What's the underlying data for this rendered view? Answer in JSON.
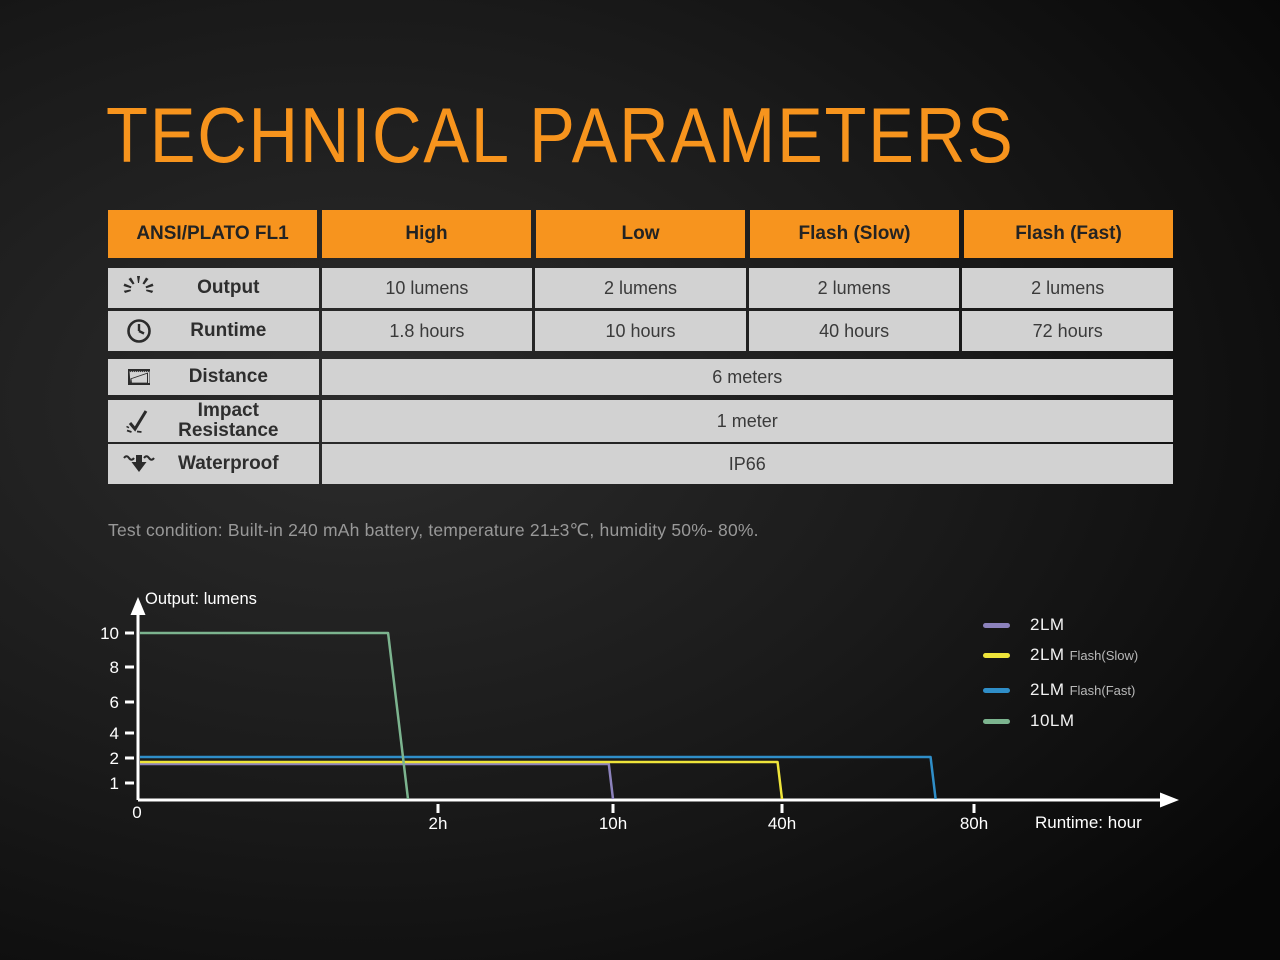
{
  "title": "TECHNICAL PARAMETERS",
  "test_condition": "Test condition: Built-in 240 mAh battery, temperature 21±3℃, humidity 50%- 80%.",
  "table": {
    "headers": [
      "ANSI/PLATO FL1",
      "High",
      "Low",
      "Flash (Slow)",
      "Flash (Fast)"
    ],
    "rows": [
      {
        "icon": "brightness-icon",
        "label": "Output",
        "values": [
          "10 lumens",
          "2 lumens",
          "2 lumens",
          "2 lumens"
        ]
      },
      {
        "icon": "clock-icon",
        "label": "Runtime",
        "values": [
          "1.8 hours",
          "10 hours",
          "40 hours",
          "72 hours"
        ]
      },
      {
        "icon": "beam-distance-icon",
        "label": "Distance",
        "span_value": "6 meters"
      },
      {
        "icon": "impact-icon",
        "label": "Impact Resistance",
        "span_value": "1 meter"
      },
      {
        "icon": "waterproof-icon",
        "label": "Waterproof",
        "span_value": "IP66"
      }
    ]
  },
  "chart_data": {
    "type": "line",
    "title": "Output: lumens",
    "xlabel": "Runtime: hour",
    "ylabel": "Output: lumens",
    "x_axis_unit": "hours",
    "y_axis_unit": "lumens",
    "y_ticks": [
      10,
      8,
      6,
      4,
      2,
      1,
      0
    ],
    "x_ticks": [
      {
        "hours": 0,
        "label": "0"
      },
      {
        "hours": 2,
        "label": "2h"
      },
      {
        "hours": 10,
        "label": "10h"
      },
      {
        "hours": 40,
        "label": "40h"
      },
      {
        "hours": 80,
        "label": "80h"
      }
    ],
    "grid": false,
    "legend_position": "right",
    "axis_color": "#ffffff",
    "series": [
      {
        "name": "2LM",
        "suffix": "",
        "color": "#8c82bc",
        "lumens": 2,
        "runtime_hours": 10,
        "points": [
          [
            0,
            2
          ],
          [
            10,
            2
          ],
          [
            10,
            0
          ]
        ]
      },
      {
        "name": "2LM",
        "suffix": "Flash(Slow)",
        "color": "#eee43a",
        "lumens": 2,
        "runtime_hours": 40,
        "points": [
          [
            0,
            2
          ],
          [
            40,
            2
          ],
          [
            40,
            0
          ]
        ]
      },
      {
        "name": "2LM",
        "suffix": "Flash(Fast)",
        "color": "#2f8ec8",
        "lumens": 2,
        "runtime_hours": 72,
        "points": [
          [
            0,
            2
          ],
          [
            72,
            2
          ],
          [
            72,
            0
          ]
        ]
      },
      {
        "name": "10LM",
        "suffix": "",
        "color": "#7cb48f",
        "lumens": 10,
        "runtime_hours": 1.8,
        "points": [
          [
            0,
            10
          ],
          [
            1.8,
            10
          ],
          [
            1.8,
            0
          ]
        ]
      }
    ]
  },
  "colors": {
    "accent_orange": "#f7941d",
    "table_header_bg": "#f7941e",
    "table_row_bg": "#d2d2d2",
    "background_dark": "#141414",
    "axis_white": "#ffffff"
  }
}
